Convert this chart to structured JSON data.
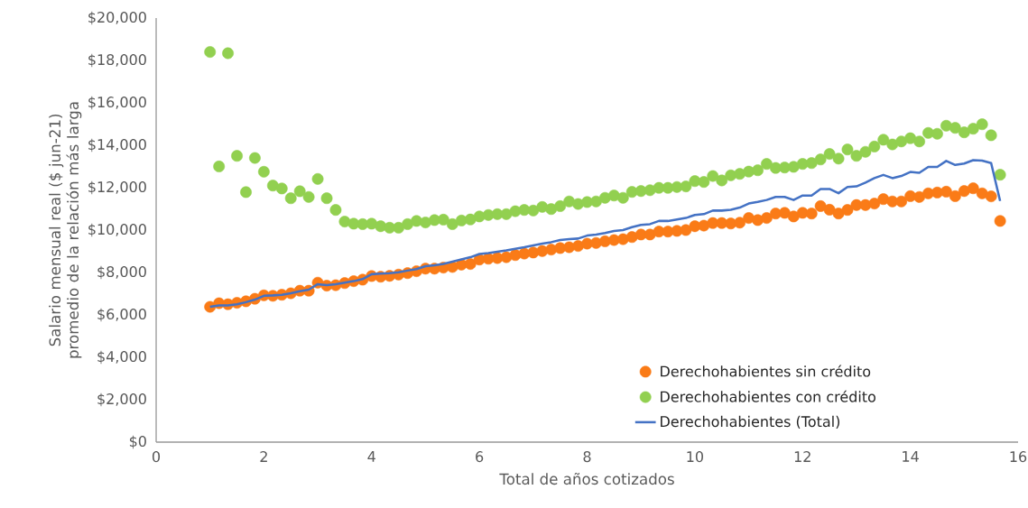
{
  "chart_data": {
    "type": "scatter",
    "xlabel": "Total de años cotizados",
    "ylabel": "Salario mensual real ($ jun-21) promedio de la relación más larga",
    "xlim": [
      0,
      16
    ],
    "xticks": [
      0,
      2,
      4,
      6,
      8,
      10,
      12,
      14,
      16
    ],
    "ylim": [
      0,
      20000
    ],
    "yticks": [
      {
        "value": 0,
        "label": "$0"
      },
      {
        "value": 2000,
        "label": "$2,000"
      },
      {
        "value": 4000,
        "label": "$4,000"
      },
      {
        "value": 6000,
        "label": "$6,000"
      },
      {
        "value": 8000,
        "label": "$8,000"
      },
      {
        "value": 10000,
        "label": "$10,000"
      },
      {
        "value": 12000,
        "label": "$12,000"
      },
      {
        "value": 14000,
        "label": "$14,000"
      },
      {
        "value": 16000,
        "label": "$16,000"
      },
      {
        "value": 18000,
        "label": "$18,000"
      },
      {
        "value": 20000,
        "label": "$20,000"
      }
    ],
    "legend": "bottom right",
    "x": [
      1,
      1.167,
      1.333,
      1.5,
      1.667,
      1.833,
      2,
      2.167,
      2.333,
      2.5,
      2.667,
      2.833,
      3,
      3.167,
      3.333,
      3.5,
      3.667,
      3.833,
      4,
      4.167,
      4.333,
      4.5,
      4.667,
      4.833,
      5,
      5.167,
      5.333,
      5.5,
      5.667,
      5.833,
      6,
      6.167,
      6.333,
      6.5,
      6.667,
      6.833,
      7,
      7.167,
      7.333,
      7.5,
      7.667,
      7.833,
      8,
      8.167,
      8.333,
      8.5,
      8.667,
      8.833,
      9,
      9.167,
      9.333,
      9.5,
      9.667,
      9.833,
      10,
      10.167,
      10.333,
      10.5,
      10.667,
      10.833,
      11,
      11.167,
      11.333,
      11.5,
      11.667,
      11.833,
      12,
      12.167,
      12.333,
      12.5,
      12.667,
      12.833,
      13,
      13.167,
      13.333,
      13.5,
      13.667,
      13.833,
      14,
      14.167,
      14.333,
      14.5,
      14.667,
      14.833,
      15,
      15.167,
      15.333,
      15.5,
      15.667
    ],
    "series": [
      {
        "name": "Derechohabientes sin crédito",
        "type": "scatter",
        "marker": "circle",
        "color": "#fa7b17",
        "values": [
          6380,
          6550,
          6500,
          6570,
          6640,
          6760,
          6920,
          6900,
          6950,
          7020,
          7140,
          7140,
          7520,
          7380,
          7400,
          7500,
          7590,
          7660,
          7830,
          7800,
          7840,
          7900,
          7970,
          8060,
          8180,
          8180,
          8230,
          8260,
          8370,
          8400,
          8610,
          8650,
          8680,
          8720,
          8820,
          8890,
          8940,
          9010,
          9080,
          9150,
          9190,
          9250,
          9360,
          9390,
          9470,
          9530,
          9570,
          9670,
          9790,
          9790,
          9930,
          9930,
          9960,
          10000,
          10180,
          10210,
          10330,
          10330,
          10310,
          10350,
          10570,
          10470,
          10570,
          10780,
          10810,
          10640,
          10810,
          10780,
          11130,
          10960,
          10780,
          10950,
          11180,
          11180,
          11250,
          11460,
          11350,
          11350,
          11600,
          11560,
          11730,
          11770,
          11810,
          11600,
          11840,
          11970,
          11730,
          11590,
          10430
        ]
      },
      {
        "name": "Derechohabientes con crédito",
        "type": "scatter",
        "marker": "circle",
        "color": "#92d050",
        "values": [
          18400,
          13000,
          18340,
          13500,
          11790,
          13400,
          12750,
          12100,
          11960,
          11500,
          11830,
          11560,
          12410,
          11500,
          10950,
          10400,
          10300,
          10280,
          10300,
          10180,
          10110,
          10110,
          10280,
          10430,
          10360,
          10470,
          10490,
          10280,
          10450,
          10500,
          10640,
          10710,
          10750,
          10750,
          10890,
          10950,
          10920,
          11090,
          10990,
          11130,
          11350,
          11230,
          11320,
          11350,
          11520,
          11630,
          11520,
          11800,
          11840,
          11880,
          11990,
          11990,
          12030,
          12060,
          12310,
          12270,
          12550,
          12340,
          12580,
          12650,
          12760,
          12820,
          13120,
          12930,
          12950,
          12980,
          13120,
          13160,
          13330,
          13590,
          13370,
          13800,
          13500,
          13690,
          13940,
          14260,
          14040,
          14180,
          14330,
          14180,
          14580,
          14540,
          14920,
          14820,
          14610,
          14780,
          14990,
          14470,
          12610
        ]
      },
      {
        "name": "Derechohabientes (Total)",
        "type": "line",
        "marker": "none",
        "color": "#4472c4",
        "values": [
          6380,
          6450,
          6450,
          6500,
          6600,
          6720,
          6900,
          6920,
          6950,
          7020,
          7120,
          7190,
          7450,
          7400,
          7450,
          7520,
          7590,
          7690,
          7920,
          7950,
          7970,
          8010,
          8090,
          8160,
          8300,
          8340,
          8400,
          8510,
          8620,
          8720,
          8870,
          8910,
          8980,
          9040,
          9120,
          9190,
          9280,
          9360,
          9430,
          9530,
          9570,
          9600,
          9740,
          9790,
          9860,
          9960,
          10000,
          10140,
          10240,
          10280,
          10430,
          10430,
          10500,
          10570,
          10710,
          10750,
          10920,
          10920,
          10960,
          11060,
          11250,
          11330,
          11420,
          11560,
          11560,
          11420,
          11630,
          11630,
          11940,
          11940,
          11740,
          12030,
          12060,
          12240,
          12450,
          12600,
          12450,
          12550,
          12740,
          12700,
          12980,
          12980,
          13260,
          13070,
          13140,
          13300,
          13280,
          13160,
          11370
        ]
      }
    ]
  }
}
